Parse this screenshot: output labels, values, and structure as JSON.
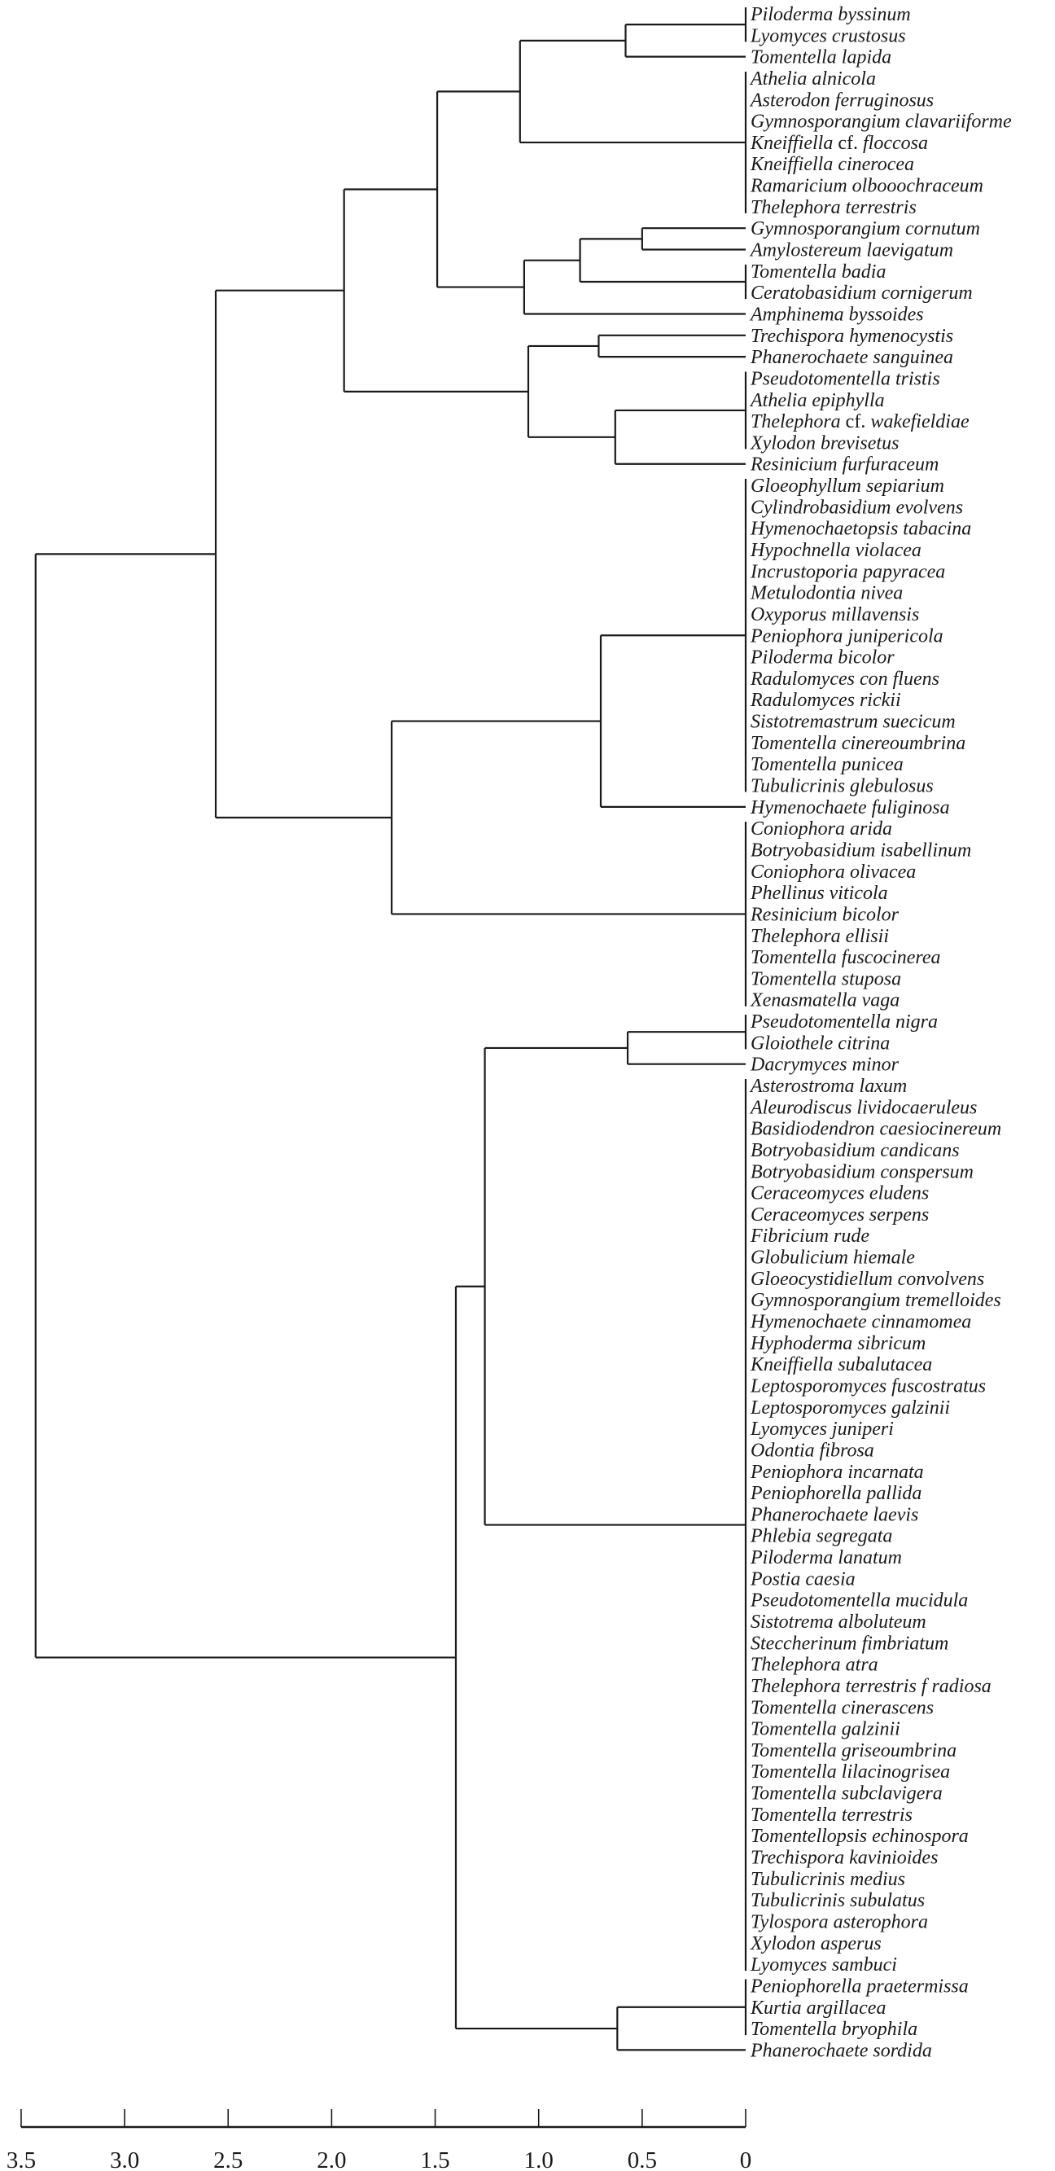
{
  "chart_data": {
    "type": "dendrogram",
    "orientation": "leaves-right",
    "xlabel": "",
    "xlim": [
      3.5,
      0
    ],
    "x_ticks": [
      "3.5",
      "3.0",
      "2.5",
      "2.0",
      "1.5",
      "1.0",
      "0.5",
      "0"
    ],
    "x_tick_values": [
      3.5,
      3.0,
      2.5,
      2.0,
      1.5,
      1.0,
      0.5,
      0
    ],
    "leaves": [
      "Piloderma byssinum",
      "Lyomyces crustosus",
      "Tomentella lapida",
      "Athelia alnicola",
      "Asterodon ferruginosus",
      "Gymnosporangium clavariiforme",
      "Kneiffiella cf. floccosa",
      "Kneiffiella cinerocea",
      "Ramaricium olbooochraceum",
      "Thelephora terrestris",
      "Gymnosporangium cornutum",
      "Amylostereum laevigatum",
      "Tomentella badia",
      "Ceratobasidium cornigerum",
      "Amphinema byssoides",
      "Trechispora hymenocystis",
      "Phanerochaete sanguinea",
      "Pseudotomentella tristis",
      "Athelia epiphylla",
      "Thelephora cf. wakefieldiae",
      "Xylodon brevisetus",
      "Resinicium furfuraceum",
      "Gloeophyllum sepiarium",
      "Cylindrobasidium evolvens",
      "Hymenochaetopsis tabacina",
      "Hypochnella violacea",
      "Incrustoporia papyracea",
      "Metulodontia nivea",
      "Oxyporus millavensis",
      "Peniophora junipericola",
      "Piloderma bicolor",
      "Radulomyces con fluens",
      "Radulomyces rickii",
      "Sistotremastrum suecicum",
      "Tomentella cinereoumbrina",
      "Tomentella punicea",
      "Tubulicrinis glebulosus",
      "Hymenochaete fuliginosa",
      "Coniophora arida",
      "Botryobasidium isabellinum",
      "Coniophora olivacea",
      "Phellinus viticola",
      "Resinicium bicolor",
      "Thelephora ellisii",
      "Tomentella fuscocinerea",
      "Tomentella stuposa",
      "Xenasmatella vaga",
      "Pseudotomentella nigra",
      "Gloiothele citrina",
      "Dacrymyces minor",
      "Asterostroma laxum",
      "Aleurodiscus lividocaeruleus",
      "Basidiodendron caesiocinereum",
      "Botryobasidium candicans",
      "Botryobasidium conspersum",
      "Ceraceomyces eludens",
      "Ceraceomyces serpens",
      "Fibricium rude",
      "Globulicium hiemale",
      "Gloeocystidiellum convolvens",
      "Gymnosporangium tremelloides",
      "Hymenochaete cinnamomea",
      "Hyphoderma sibricum",
      "Kneiffiella subalutacea",
      "Leptosporomyces fuscostratus",
      "Leptosporomyces galzinii",
      "Lyomyces juniperi",
      "Odontia fibrosa",
      "Peniophora incarnata",
      "Peniophorella pallida",
      "Phanerochaete laevis",
      "Phlebia segregata",
      "Piloderma lanatum",
      "Postia caesia",
      "Pseudotomentella mucidula",
      "Sistotrema alboluteum",
      "Steccherinum fimbriatum",
      "Thelephora atra",
      "Thelephora terrestris f radiosa",
      "Tomentella cinerascens",
      "Tomentella galzinii",
      "Tomentella griseoumbrina",
      "Tomentella lilacinogrisea",
      "Tomentella subclavigera",
      "Tomentella terrestris",
      "Tomentellopsis echinospora",
      "Trechispora kavinioides",
      "Tubulicrinis medius",
      "Tubulicrinis subulatus",
      "Tylospora asterophora",
      "Xylodon asperus",
      "Lyomyces sambuci",
      "Peniophorella praetermissa",
      "Kurtia argillacea",
      "Tomentella bryophila",
      "Phanerochaete sordida"
    ],
    "tree": {
      "h": 3.43,
      "children": [
        {
          "h": 2.56,
          "children": [
            {
              "h": 1.94,
              "children": [
                {
                  "h": 1.49,
                  "children": [
                    {
                      "h": 1.09,
                      "children": [
                        {
                          "h": 0.58,
                          "children": [
                            {
                              "h": 0,
                              "children": [
                                0,
                                1
                              ]
                            },
                            2
                          ]
                        },
                        {
                          "h": 0,
                          "children": [
                            3,
                            4,
                            5,
                            6,
                            7,
                            8,
                            9
                          ]
                        }
                      ]
                    },
                    {
                      "h": 1.07,
                      "children": [
                        {
                          "h": 0.8,
                          "children": [
                            {
                              "h": 0.5,
                              "children": [
                                10,
                                11
                              ]
                            },
                            {
                              "h": 0,
                              "children": [
                                12,
                                13
                              ]
                            }
                          ]
                        },
                        14
                      ]
                    }
                  ]
                },
                {
                  "h": 1.05,
                  "children": [
                    {
                      "h": 0.71,
                      "children": [
                        15,
                        16
                      ]
                    },
                    {
                      "h": 0.63,
                      "children": [
                        {
                          "h": 0,
                          "children": [
                            17,
                            18,
                            19,
                            20
                          ]
                        },
                        21
                      ]
                    }
                  ]
                }
              ]
            },
            {
              "h": 1.71,
              "children": [
                {
                  "h": 0.7,
                  "children": [
                    {
                      "h": 0,
                      "children": [
                        22,
                        23,
                        24,
                        25,
                        26,
                        27,
                        28,
                        29,
                        30,
                        31,
                        32,
                        33,
                        34,
                        35,
                        36
                      ]
                    },
                    37
                  ]
                },
                {
                  "h": 0,
                  "children": [
                    38,
                    39,
                    40,
                    41,
                    42,
                    43,
                    44,
                    45,
                    46
                  ]
                }
              ]
            }
          ]
        },
        {
          "h": 1.4,
          "children": [
            {
              "h": 1.26,
              "children": [
                {
                  "h": 0.57,
                  "children": [
                    {
                      "h": 0,
                      "children": [
                        47,
                        48
                      ]
                    },
                    49
                  ]
                },
                {
                  "h": 0,
                  "children": [
                    50,
                    51,
                    52,
                    53,
                    54,
                    55,
                    56,
                    57,
                    58,
                    59,
                    60,
                    61,
                    62,
                    63,
                    64,
                    65,
                    66,
                    67,
                    68,
                    69,
                    70,
                    71,
                    72,
                    73,
                    74,
                    75,
                    76,
                    77,
                    78,
                    79,
                    80,
                    81,
                    82,
                    83,
                    84,
                    85,
                    86,
                    87,
                    88,
                    89,
                    90,
                    91
                  ]
                }
              ]
            },
            {
              "h": 0.62,
              "children": [
                {
                  "h": 0,
                  "children": [
                    92,
                    93,
                    94
                  ]
                },
                95
              ]
            }
          ]
        }
      ]
    }
  }
}
